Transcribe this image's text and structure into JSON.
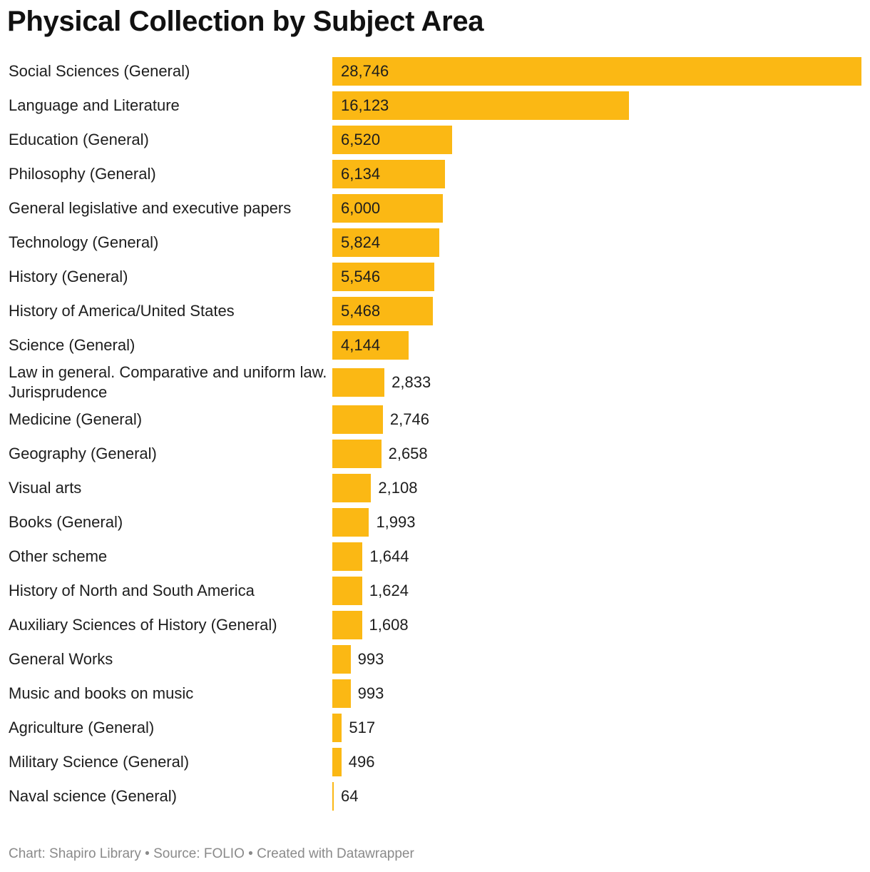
{
  "title": "Physical Collection by Subject Area",
  "footer": {
    "chart_credit": "Chart: Shapiro Library",
    "separator": "•",
    "source": "Source: FOLIO",
    "tool": "Created with Datawrapper"
  },
  "colors": {
    "bar": "#fbb814",
    "text": "#1d1d1d",
    "footer": "#8a8a8a"
  },
  "chart_data": {
    "type": "bar",
    "orientation": "horizontal",
    "title": "Physical Collection by Subject Area",
    "xlabel": "",
    "ylabel": "",
    "xlim": [
      0,
      28746
    ],
    "grid": false,
    "legend": "none",
    "categories": [
      "Social Sciences (General)",
      "Language and Literature",
      "Education (General)",
      "Philosophy (General)",
      "General legislative and executive papers",
      "Technology (General)",
      "History (General)",
      "History of America/United States",
      "Science (General)",
      "Law in general. Comparative and uniform law. Jurisprudence",
      "Medicine (General)",
      "Geography (General)",
      "Visual arts",
      "Books (General)",
      "Other scheme",
      "History of North and South America",
      "Auxiliary Sciences of History (General)",
      "General Works",
      "Music and books on music",
      "Agriculture (General)",
      "Military Science (General)",
      "Naval science (General)"
    ],
    "values": [
      28746,
      16123,
      6520,
      6134,
      6000,
      5824,
      5546,
      5468,
      4144,
      2833,
      2746,
      2658,
      2108,
      1993,
      1644,
      1624,
      1608,
      993,
      993,
      517,
      496,
      64
    ],
    "value_labels": [
      "28,746",
      "16,123",
      "6,520",
      "6,134",
      "6,000",
      "5,824",
      "5,546",
      "5,468",
      "4,144",
      "2,833",
      "2,746",
      "2,658",
      "2,108",
      "1,993",
      "1,644",
      "1,624",
      "1,608",
      "993",
      "993",
      "517",
      "496",
      "64"
    ]
  }
}
